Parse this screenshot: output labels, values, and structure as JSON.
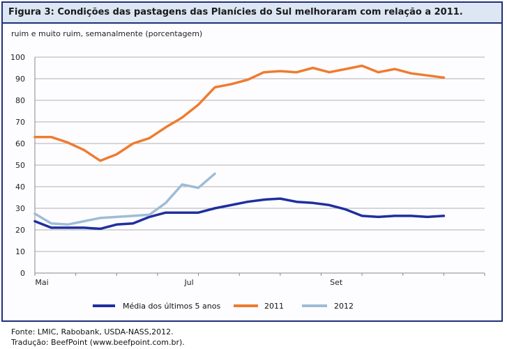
{
  "title": "Figura 3: Condições das pastagens das Planícies do Sul melhoraram com relação a 2011.",
  "subtitle": "ruim e muito ruim, semanalmente (porcentagem)",
  "footer": {
    "source": "Fonte: LMIC, Rabobank, USDA-NASS,2012.",
    "translation": "Tradução: BeefPoint (www.beefpoint.com.br)."
  },
  "colors": {
    "avg": "#1f2f9f",
    "y2011": "#f07b30",
    "y2012": "#9fbcd6",
    "frame": "#1f2f7a",
    "titlebar": "#dde7f3"
  },
  "chart_data": {
    "type": "line",
    "title": "Figura 3: Condições das pastagens das Planícies do Sul melhoraram com relação a 2011.",
    "subtitle": "ruim e muito ruim, semanalmente (porcentagem)",
    "xlabel": "",
    "ylabel": "",
    "ylim": [
      0,
      100
    ],
    "yticks": [
      0,
      10,
      20,
      30,
      40,
      50,
      60,
      70,
      80,
      90,
      100
    ],
    "x_tick_labels": [
      {
        "label": "Mai",
        "week": 0
      },
      {
        "label": "Jul",
        "week": 9
      },
      {
        "label": "Set",
        "week": 18
      }
    ],
    "grid": "horizontal",
    "legend_position": "bottom",
    "series": [
      {
        "name": "Média dos últimos 5 anos",
        "color": "#1f2f9f",
        "x": [
          0,
          1,
          2,
          3,
          4,
          5,
          6,
          7,
          8,
          9,
          10,
          11,
          12,
          13,
          14,
          15,
          16,
          17,
          18,
          19,
          20,
          21,
          22,
          23,
          24,
          25
        ],
        "values": [
          24,
          21,
          21,
          21,
          20.5,
          22.5,
          23,
          26,
          28,
          28,
          28,
          30,
          31.5,
          33,
          34,
          34.5,
          33,
          32.5,
          31.5,
          29.5,
          26.5,
          26,
          26.5,
          26.5,
          26,
          26.5
        ]
      },
      {
        "name": "2011",
        "color": "#f07b30",
        "x": [
          0,
          1,
          2,
          3,
          4,
          5,
          6,
          7,
          8,
          9,
          10,
          11,
          12,
          13,
          14,
          15,
          16,
          17,
          18,
          19,
          20,
          21,
          22,
          23,
          24,
          25
        ],
        "values": [
          63,
          63,
          60.5,
          57,
          52,
          55,
          60,
          62.5,
          67.5,
          72,
          78,
          86,
          87.5,
          89.5,
          93,
          93.5,
          93,
          95,
          93,
          94.5,
          96,
          93,
          94.5,
          92.5,
          91.5,
          90.5
        ]
      },
      {
        "name": "2012",
        "color": "#9fbcd6",
        "x": [
          0,
          1,
          2,
          3,
          4,
          5,
          6,
          7,
          8,
          9,
          10,
          11
        ],
        "values": [
          27.5,
          23,
          22.5,
          24,
          25.5,
          26,
          26.5,
          27,
          32.5,
          41,
          39.5,
          46
        ]
      }
    ]
  }
}
